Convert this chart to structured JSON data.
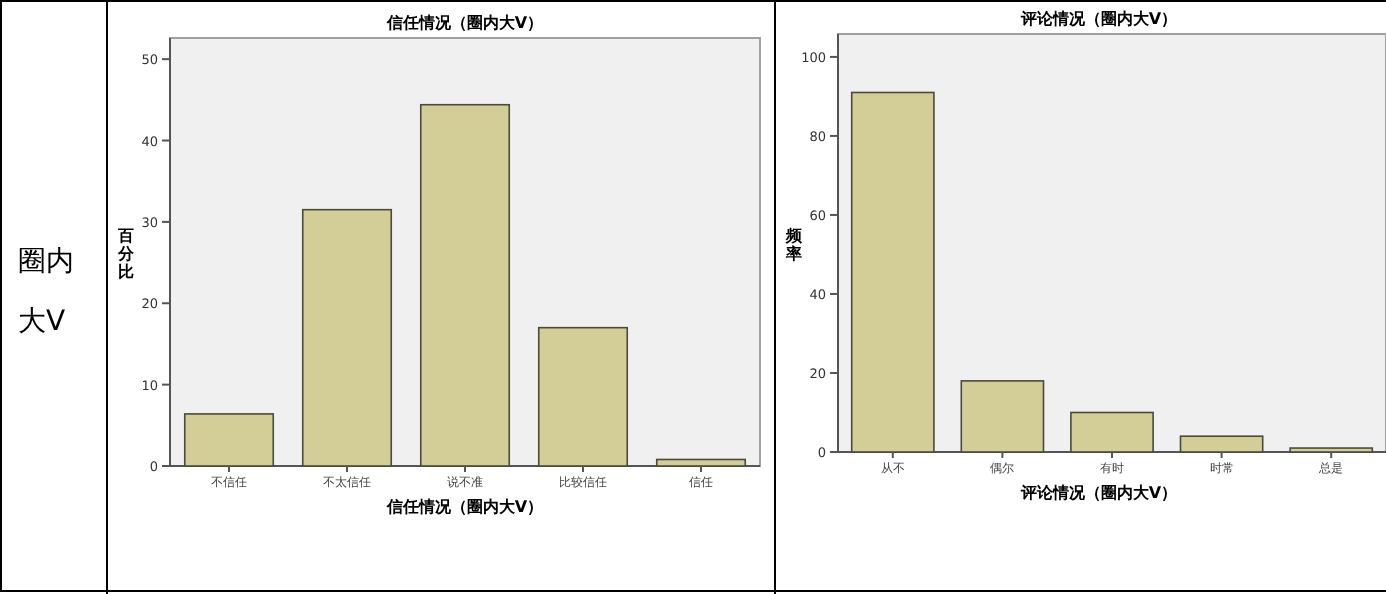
{
  "chart_data": [
    {
      "type": "bar",
      "title": "信任情况（圈内大V）",
      "xlabel": "信任情况（圈内大V）",
      "ylabel": "百分比",
      "categories": [
        "不信任",
        "不太信任",
        "说不准",
        "比较信任",
        "信任"
      ],
      "values": [
        6.4,
        31.5,
        44.4,
        17.0,
        0.8
      ],
      "color": "#d3ce97",
      "ylim": [
        0,
        52.6
      ],
      "yticks": [
        0,
        10,
        20,
        30,
        40,
        50
      ],
      "grid": false,
      "annotations": [
        "圈内大V"
      ]
    },
    {
      "type": "bar",
      "title": "评论情况（圈内大V）",
      "xlabel": "评论情况（圈内大V）",
      "ylabel": "频率",
      "categories": [
        "从不",
        "偶尔",
        "有时",
        "时常",
        "总是"
      ],
      "values": [
        91,
        18,
        10,
        4,
        1
      ],
      "color": "#d3ce97",
      "ylim": [
        0,
        105.8
      ],
      "yticks": [
        0,
        20,
        40,
        60,
        80,
        100
      ],
      "grid": false
    }
  ]
}
